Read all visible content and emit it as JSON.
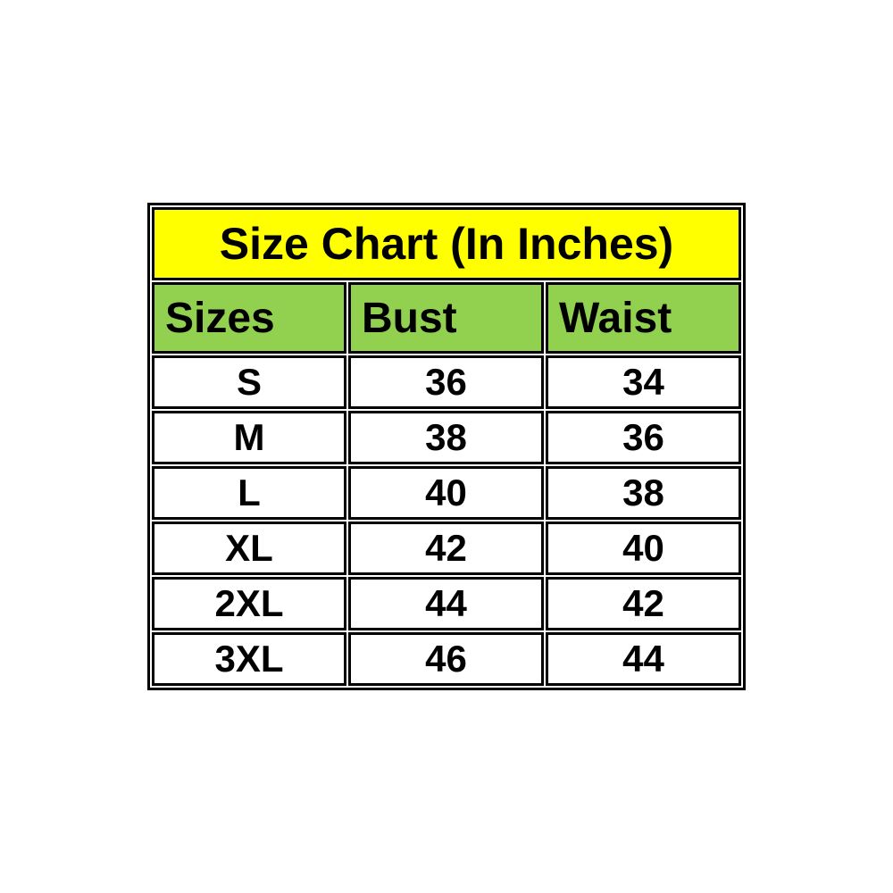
{
  "table": {
    "title": "Size Chart (In Inches)",
    "columns": [
      "Sizes",
      "Bust",
      "Waist"
    ],
    "rows": [
      [
        "S",
        "36",
        "34"
      ],
      [
        "M",
        "38",
        "36"
      ],
      [
        "L",
        "40",
        "38"
      ],
      [
        "XL",
        "42",
        "40"
      ],
      [
        "2XL",
        "44",
        "42"
      ],
      [
        "3XL",
        "46",
        "44"
      ]
    ]
  },
  "colors": {
    "title_background": "#ffff00",
    "header_background": "#92d050",
    "border": "#000000",
    "page_background": "#ffffff",
    "text": "#000000"
  },
  "chart_data": {
    "type": "table",
    "title": "Size Chart (In Inches)",
    "columns": [
      "Sizes",
      "Bust",
      "Waist"
    ],
    "categories": [
      "S",
      "M",
      "L",
      "XL",
      "2XL",
      "3XL"
    ],
    "series": [
      {
        "name": "Bust",
        "values": [
          36,
          38,
          40,
          42,
          44,
          46
        ]
      },
      {
        "name": "Waist",
        "values": [
          34,
          36,
          38,
          40,
          42,
          44
        ]
      }
    ],
    "units": "inches",
    "layout": {
      "title_row_highlight": "#ffff00",
      "header_row_highlight": "#92d050",
      "grid": true
    }
  }
}
